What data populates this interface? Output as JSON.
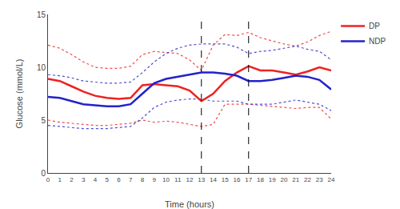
{
  "chart_data": {
    "type": "line",
    "xlabel": "Time (hours)",
    "ylabel": "Glucose (mmol/L)",
    "x": [
      0,
      1,
      2,
      3,
      4,
      5,
      6,
      7,
      8,
      9,
      10,
      11,
      12,
      13,
      14,
      15,
      16,
      17,
      18,
      19,
      20,
      21,
      22,
      23,
      24
    ],
    "xlim": [
      0,
      24
    ],
    "ylim": [
      0,
      15
    ],
    "xticks": [
      0,
      1,
      2,
      3,
      4,
      5,
      6,
      7,
      8,
      9,
      10,
      11,
      12,
      13,
      14,
      15,
      16,
      17,
      18,
      19,
      20,
      21,
      22,
      23,
      24
    ],
    "yticks": [
      0,
      5,
      10,
      15
    ],
    "vlines": [
      13,
      17
    ],
    "grid": false,
    "legend": "right",
    "series": [
      {
        "color": "#EE2222",
        "line_style": "dotted",
        "values": [
          12.1,
          11.8,
          11.2,
          10.5,
          10.0,
          9.9,
          9.9,
          10.1,
          11.2,
          11.5,
          11.4,
          11.3,
          10.7,
          9.7,
          12.1,
          13.1,
          13.0,
          13.3,
          12.8,
          12.5,
          12.2,
          12.0,
          12.4,
          13.0,
          13.4
        ]
      },
      {
        "color": "#EE2222",
        "line_style": "dotted",
        "values": [
          5.0,
          4.8,
          4.7,
          4.6,
          4.5,
          4.5,
          4.6,
          4.7,
          5.0,
          4.8,
          4.9,
          4.8,
          4.6,
          4.4,
          4.6,
          6.5,
          6.5,
          6.5,
          6.4,
          6.3,
          6.2,
          6.1,
          6.2,
          6.2,
          5.1
        ]
      },
      {
        "color": "#2222CC",
        "line_style": "dotted",
        "values": [
          9.3,
          9.2,
          9.0,
          8.7,
          8.6,
          8.5,
          8.5,
          8.6,
          9.5,
          10.5,
          11.3,
          11.8,
          12.1,
          12.2,
          12.2,
          12.2,
          11.9,
          11.3,
          11.5,
          11.6,
          11.8,
          12.0,
          11.7,
          11.5,
          10.7
        ]
      },
      {
        "color": "#2222CC",
        "line_style": "dotted",
        "values": [
          4.5,
          4.4,
          4.3,
          4.2,
          4.2,
          4.2,
          4.3,
          4.4,
          5.2,
          6.2,
          6.7,
          6.9,
          7.0,
          7.0,
          6.8,
          6.8,
          6.8,
          6.5,
          6.5,
          6.5,
          6.7,
          6.9,
          6.7,
          6.5,
          5.9
        ]
      },
      {
        "name": "DP",
        "color": "#EE2222",
        "line_style": "solid",
        "values": [
          8.9,
          8.7,
          8.2,
          7.7,
          7.3,
          7.1,
          7.0,
          7.1,
          8.3,
          8.4,
          8.3,
          8.2,
          7.8,
          6.8,
          7.5,
          8.7,
          9.5,
          10.1,
          9.7,
          9.7,
          9.5,
          9.3,
          9.6,
          10.0,
          9.7
        ]
      },
      {
        "name": "NDP",
        "color": "#2222CC",
        "line_style": "solid",
        "values": [
          7.2,
          7.1,
          6.8,
          6.5,
          6.4,
          6.3,
          6.3,
          6.5,
          7.5,
          8.5,
          8.9,
          9.1,
          9.3,
          9.5,
          9.5,
          9.4,
          9.2,
          8.7,
          8.7,
          8.8,
          9.0,
          9.2,
          9.1,
          8.8,
          7.9
        ]
      }
    ]
  }
}
